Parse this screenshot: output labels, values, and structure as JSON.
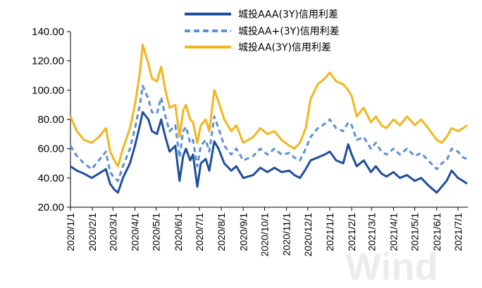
{
  "chart_data": {
    "type": "line",
    "ylim": [
      20,
      140
    ],
    "yticks": [
      "20.00",
      "40.00",
      "60.00",
      "80.00",
      "100.00",
      "120.00",
      "140.00"
    ],
    "x_range": [
      "2020-01-01",
      "2021-07-15"
    ],
    "x_ticks": [
      "2020/1/1",
      "2020/2/1",
      "2020/3/1",
      "2020/4/1",
      "2020/5/1",
      "2020/6/1",
      "2020/7/1",
      "2020/8/1",
      "2020/9/1",
      "2020/10/1",
      "2020/11/1",
      "2020/12/1",
      "2021/1/1",
      "2021/2/1",
      "2021/3/1",
      "2021/4/1",
      "2021/5/1",
      "2021/6/1",
      "2021/7/1"
    ],
    "legend_position": "top-right",
    "grid": false,
    "watermark": "Wind",
    "series": [
      {
        "name": "城投AAA(3Y)信用利差",
        "color": "#1f4e9c",
        "style": "solid",
        "points": [
          [
            "2020-01-01",
            48
          ],
          [
            "2020-01-10",
            45
          ],
          [
            "2020-01-20",
            43
          ],
          [
            "2020-01-31",
            40
          ],
          [
            "2020-02-10",
            43
          ],
          [
            "2020-02-20",
            46
          ],
          [
            "2020-02-26",
            36
          ],
          [
            "2020-03-03",
            32
          ],
          [
            "2020-03-08",
            30
          ],
          [
            "2020-03-15",
            40
          ],
          [
            "2020-03-25",
            50
          ],
          [
            "2020-04-01",
            62
          ],
          [
            "2020-04-08",
            76
          ],
          [
            "2020-04-12",
            85
          ],
          [
            "2020-04-20",
            80
          ],
          [
            "2020-04-25",
            72
          ],
          [
            "2020-05-02",
            70
          ],
          [
            "2020-05-08",
            80
          ],
          [
            "2020-05-14",
            68
          ],
          [
            "2020-05-20",
            58
          ],
          [
            "2020-05-28",
            62
          ],
          [
            "2020-06-03",
            38
          ],
          [
            "2020-06-08",
            55
          ],
          [
            "2020-06-12",
            60
          ],
          [
            "2020-06-18",
            52
          ],
          [
            "2020-06-22",
            56
          ],
          [
            "2020-06-28",
            34
          ],
          [
            "2020-07-03",
            50
          ],
          [
            "2020-07-10",
            53
          ],
          [
            "2020-07-15",
            45
          ],
          [
            "2020-07-22",
            65
          ],
          [
            "2020-07-28",
            60
          ],
          [
            "2020-08-05",
            50
          ],
          [
            "2020-08-15",
            45
          ],
          [
            "2020-08-22",
            48
          ],
          [
            "2020-09-01",
            40
          ],
          [
            "2020-09-15",
            42
          ],
          [
            "2020-09-25",
            47
          ],
          [
            "2020-10-05",
            44
          ],
          [
            "2020-10-15",
            47
          ],
          [
            "2020-10-25",
            44
          ],
          [
            "2020-11-05",
            45
          ],
          [
            "2020-11-12",
            42
          ],
          [
            "2020-11-20",
            40
          ],
          [
            "2020-11-28",
            46
          ],
          [
            "2020-12-05",
            52
          ],
          [
            "2020-12-15",
            54
          ],
          [
            "2020-12-25",
            56
          ],
          [
            "2021-01-01",
            58
          ],
          [
            "2021-01-10",
            52
          ],
          [
            "2021-01-20",
            50
          ],
          [
            "2021-01-27",
            63
          ],
          [
            "2021-02-01",
            56
          ],
          [
            "2021-02-08",
            48
          ],
          [
            "2021-02-18",
            52
          ],
          [
            "2021-02-28",
            44
          ],
          [
            "2021-03-07",
            48
          ],
          [
            "2021-03-15",
            43
          ],
          [
            "2021-03-22",
            41
          ],
          [
            "2021-04-01",
            44
          ],
          [
            "2021-04-10",
            40
          ],
          [
            "2021-04-20",
            42
          ],
          [
            "2021-05-01",
            38
          ],
          [
            "2021-05-10",
            40
          ],
          [
            "2021-05-20",
            35
          ],
          [
            "2021-06-01",
            30
          ],
          [
            "2021-06-08",
            34
          ],
          [
            "2021-06-15",
            38
          ],
          [
            "2021-06-22",
            45
          ],
          [
            "2021-07-01",
            40
          ],
          [
            "2021-07-08",
            38
          ],
          [
            "2021-07-14",
            36
          ]
        ]
      },
      {
        "name": "城投AA+(3Y)信用利差",
        "color": "#5b8fd8",
        "style": "dashed",
        "points": [
          [
            "2020-01-01",
            62
          ],
          [
            "2020-01-10",
            55
          ],
          [
            "2020-01-20",
            50
          ],
          [
            "2020-01-31",
            46
          ],
          [
            "2020-02-10",
            52
          ],
          [
            "2020-02-20",
            58
          ],
          [
            "2020-02-26",
            44
          ],
          [
            "2020-03-03",
            40
          ],
          [
            "2020-03-08",
            38
          ],
          [
            "2020-03-15",
            48
          ],
          [
            "2020-03-25",
            60
          ],
          [
            "2020-04-01",
            74
          ],
          [
            "2020-04-08",
            90
          ],
          [
            "2020-04-12",
            103
          ],
          [
            "2020-04-20",
            94
          ],
          [
            "2020-04-25",
            85
          ],
          [
            "2020-05-02",
            84
          ],
          [
            "2020-05-08",
            95
          ],
          [
            "2020-05-14",
            82
          ],
          [
            "2020-05-20",
            72
          ],
          [
            "2020-05-28",
            76
          ],
          [
            "2020-06-03",
            54
          ],
          [
            "2020-06-08",
            72
          ],
          [
            "2020-06-12",
            75
          ],
          [
            "2020-06-18",
            64
          ],
          [
            "2020-06-22",
            66
          ],
          [
            "2020-06-28",
            48
          ],
          [
            "2020-07-03",
            62
          ],
          [
            "2020-07-10",
            66
          ],
          [
            "2020-07-15",
            58
          ],
          [
            "2020-07-22",
            82
          ],
          [
            "2020-07-28",
            74
          ],
          [
            "2020-08-05",
            62
          ],
          [
            "2020-08-15",
            56
          ],
          [
            "2020-08-22",
            60
          ],
          [
            "2020-09-01",
            52
          ],
          [
            "2020-09-15",
            55
          ],
          [
            "2020-09-25",
            60
          ],
          [
            "2020-10-05",
            56
          ],
          [
            "2020-10-15",
            60
          ],
          [
            "2020-10-25",
            56
          ],
          [
            "2020-11-05",
            57
          ],
          [
            "2020-11-12",
            54
          ],
          [
            "2020-11-20",
            52
          ],
          [
            "2020-11-28",
            60
          ],
          [
            "2020-12-05",
            68
          ],
          [
            "2020-12-15",
            74
          ],
          [
            "2020-12-25",
            77
          ],
          [
            "2021-01-01",
            80
          ],
          [
            "2021-01-10",
            74
          ],
          [
            "2021-01-20",
            72
          ],
          [
            "2021-01-27",
            78
          ],
          [
            "2021-02-01",
            76
          ],
          [
            "2021-02-08",
            66
          ],
          [
            "2021-02-18",
            68
          ],
          [
            "2021-02-28",
            60
          ],
          [
            "2021-03-07",
            64
          ],
          [
            "2021-03-15",
            58
          ],
          [
            "2021-03-22",
            56
          ],
          [
            "2021-04-01",
            60
          ],
          [
            "2021-04-10",
            56
          ],
          [
            "2021-04-20",
            60
          ],
          [
            "2021-05-01",
            55
          ],
          [
            "2021-05-10",
            57
          ],
          [
            "2021-05-20",
            52
          ],
          [
            "2021-06-01",
            46
          ],
          [
            "2021-06-08",
            50
          ],
          [
            "2021-06-15",
            52
          ],
          [
            "2021-06-22",
            60
          ],
          [
            "2021-07-01",
            58
          ],
          [
            "2021-07-08",
            54
          ],
          [
            "2021-07-14",
            53
          ]
        ]
      },
      {
        "name": "城投AA(3Y)信用利差",
        "color": "#f2b61c",
        "style": "solid",
        "points": [
          [
            "2020-01-01",
            82
          ],
          [
            "2020-01-10",
            72
          ],
          [
            "2020-01-20",
            66
          ],
          [
            "2020-01-31",
            64
          ],
          [
            "2020-02-10",
            68
          ],
          [
            "2020-02-20",
            74
          ],
          [
            "2020-02-26",
            58
          ],
          [
            "2020-03-03",
            52
          ],
          [
            "2020-03-08",
            48
          ],
          [
            "2020-03-15",
            60
          ],
          [
            "2020-03-25",
            74
          ],
          [
            "2020-04-01",
            90
          ],
          [
            "2020-04-08",
            112
          ],
          [
            "2020-04-12",
            131
          ],
          [
            "2020-04-20",
            118
          ],
          [
            "2020-04-25",
            108
          ],
          [
            "2020-05-02",
            106
          ],
          [
            "2020-05-08",
            116
          ],
          [
            "2020-05-14",
            100
          ],
          [
            "2020-05-20",
            88
          ],
          [
            "2020-05-28",
            90
          ],
          [
            "2020-06-03",
            68
          ],
          [
            "2020-06-08",
            86
          ],
          [
            "2020-06-12",
            90
          ],
          [
            "2020-06-18",
            80
          ],
          [
            "2020-06-22",
            78
          ],
          [
            "2020-06-28",
            64
          ],
          [
            "2020-07-03",
            76
          ],
          [
            "2020-07-10",
            80
          ],
          [
            "2020-07-15",
            72
          ],
          [
            "2020-07-22",
            100
          ],
          [
            "2020-07-28",
            92
          ],
          [
            "2020-08-05",
            80
          ],
          [
            "2020-08-15",
            72
          ],
          [
            "2020-08-22",
            76
          ],
          [
            "2020-09-01",
            64
          ],
          [
            "2020-09-15",
            68
          ],
          [
            "2020-09-25",
            74
          ],
          [
            "2020-10-05",
            70
          ],
          [
            "2020-10-15",
            72
          ],
          [
            "2020-10-25",
            66
          ],
          [
            "2020-11-05",
            62
          ],
          [
            "2020-11-12",
            60
          ],
          [
            "2020-11-20",
            64
          ],
          [
            "2020-11-28",
            74
          ],
          [
            "2020-12-05",
            94
          ],
          [
            "2020-12-15",
            104
          ],
          [
            "2020-12-25",
            108
          ],
          [
            "2021-01-01",
            112
          ],
          [
            "2021-01-10",
            106
          ],
          [
            "2021-01-20",
            104
          ],
          [
            "2021-01-27",
            100
          ],
          [
            "2021-02-01",
            96
          ],
          [
            "2021-02-08",
            82
          ],
          [
            "2021-02-18",
            88
          ],
          [
            "2021-02-28",
            78
          ],
          [
            "2021-03-07",
            82
          ],
          [
            "2021-03-15",
            76
          ],
          [
            "2021-03-22",
            74
          ],
          [
            "2021-04-01",
            80
          ],
          [
            "2021-04-10",
            76
          ],
          [
            "2021-04-20",
            82
          ],
          [
            "2021-05-01",
            76
          ],
          [
            "2021-05-10",
            80
          ],
          [
            "2021-05-20",
            74
          ],
          [
            "2021-06-01",
            66
          ],
          [
            "2021-06-08",
            64
          ],
          [
            "2021-06-15",
            68
          ],
          [
            "2021-06-22",
            74
          ],
          [
            "2021-07-01",
            72
          ],
          [
            "2021-07-08",
            74
          ],
          [
            "2021-07-14",
            76
          ]
        ]
      }
    ]
  }
}
